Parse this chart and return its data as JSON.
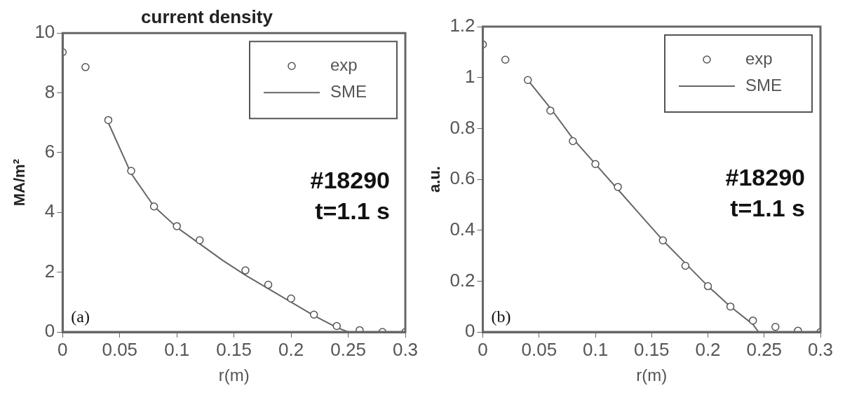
{
  "chart_data": [
    {
      "type": "scatter",
      "title": "current density",
      "xlabel": "r(m)",
      "ylabel": "MA/m²",
      "xlim": [
        0,
        0.3
      ],
      "xticks": [
        0,
        0.05,
        0.1,
        0.15,
        0.2,
        0.25,
        0.3
      ],
      "ylim": [
        0,
        10
      ],
      "yticks": [
        0,
        2,
        4,
        6,
        8,
        10
      ],
      "grid": false,
      "legend": "top right",
      "annotations": [
        "#18290",
        "t=1.1 s",
        "(a)"
      ],
      "series": [
        {
          "name": "exp",
          "marker": "circle",
          "color": "#555555",
          "x": [
            0,
            0.02,
            0.04,
            0.06,
            0.08,
            0.1,
            0.12,
            0.16,
            0.18,
            0.2,
            0.22,
            0.24,
            0.26,
            0.28,
            0.3
          ],
          "values": [
            9.36,
            8.86,
            7.09,
            5.39,
            4.2,
            3.54,
            3.07,
            2.06,
            1.58,
            1.12,
            0.58,
            0.2,
            0.06,
            0,
            0
          ]
        },
        {
          "name": "SME",
          "type": "line",
          "color": "#666666",
          "line_style": "solid",
          "x": [
            0.04,
            0.06,
            0.08,
            0.1,
            0.12,
            0.14,
            0.16,
            0.18,
            0.2,
            0.22,
            0.24,
            0.25
          ],
          "values": [
            7.0,
            5.3,
            4.2,
            3.5,
            2.95,
            2.4,
            1.9,
            1.45,
            1.0,
            0.55,
            0.15,
            0
          ]
        }
      ]
    },
    {
      "type": "scatter",
      "xlabel": "r(m)",
      "ylabel": "a.u.",
      "xlim": [
        0,
        0.3
      ],
      "xticks": [
        0,
        0.05,
        0.1,
        0.15,
        0.2,
        0.25,
        0.3
      ],
      "ylim": [
        0,
        1.2
      ],
      "yticks": [
        0,
        0.2,
        0.4,
        0.6,
        0.8,
        1,
        1.2
      ],
      "grid": false,
      "legend": "top right",
      "annotations": [
        "#18290",
        "t=1.1 s",
        "(b)"
      ],
      "series": [
        {
          "name": "exp",
          "marker": "circle",
          "color": "#555555",
          "x": [
            0,
            0.02,
            0.04,
            0.06,
            0.08,
            0.1,
            0.12,
            0.16,
            0.18,
            0.2,
            0.22,
            0.24,
            0.26,
            0.28,
            0.3
          ],
          "values": [
            1.13,
            1.07,
            0.99,
            0.87,
            0.75,
            0.66,
            0.57,
            0.36,
            0.26,
            0.18,
            0.1,
            0.045,
            0.02,
            0.005,
            0
          ]
        },
        {
          "name": "SME",
          "type": "line",
          "color": "#666666",
          "line_style": "solid",
          "x": [
            0.04,
            0.06,
            0.08,
            0.1,
            0.12,
            0.14,
            0.16,
            0.18,
            0.2,
            0.22,
            0.24,
            0.245
          ],
          "values": [
            0.99,
            0.88,
            0.76,
            0.66,
            0.56,
            0.46,
            0.36,
            0.27,
            0.18,
            0.1,
            0.03,
            0
          ]
        }
      ]
    }
  ]
}
